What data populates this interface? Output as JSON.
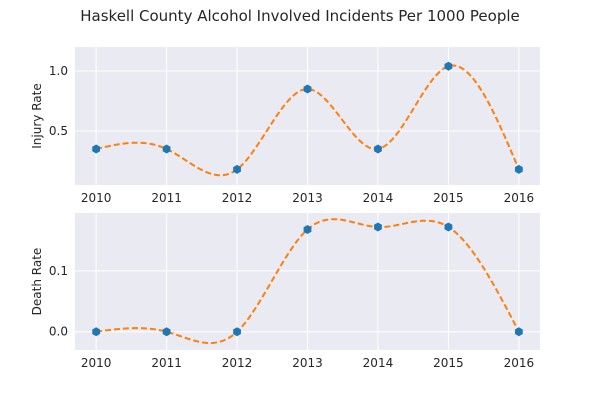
{
  "chart_data": {
    "type": "line",
    "title": "Haskell County Alcohol Involved Incidents Per 1000 People",
    "background_color": "#eaeaf2",
    "grid": true,
    "marker_color": "#1f77b4",
    "curve_color": "#ff7f0e",
    "curve_style": "dashed smooth interpolation",
    "x": [
      2010,
      2011,
      2012,
      2013,
      2014,
      2015,
      2016
    ],
    "subplots": [
      {
        "xlabel": "",
        "ylabel": "Injury Rate",
        "ylim": [
          0.05,
          1.2
        ],
        "yticks": [
          0.5,
          1.0
        ],
        "ytick_labels": [
          "0.5",
          "1.0"
        ],
        "values": [
          0.35,
          0.35,
          0.18,
          0.85,
          0.35,
          1.04,
          0.18
        ]
      },
      {
        "xlabel": "",
        "ylabel": "Death Rate",
        "ylim": [
          -0.03,
          0.195
        ],
        "yticks": [
          0.0,
          0.1
        ],
        "ytick_labels": [
          "0.0",
          "0.1"
        ],
        "values": [
          0.0,
          0.0,
          0.0,
          0.168,
          0.172,
          0.172,
          0.0
        ]
      }
    ]
  }
}
